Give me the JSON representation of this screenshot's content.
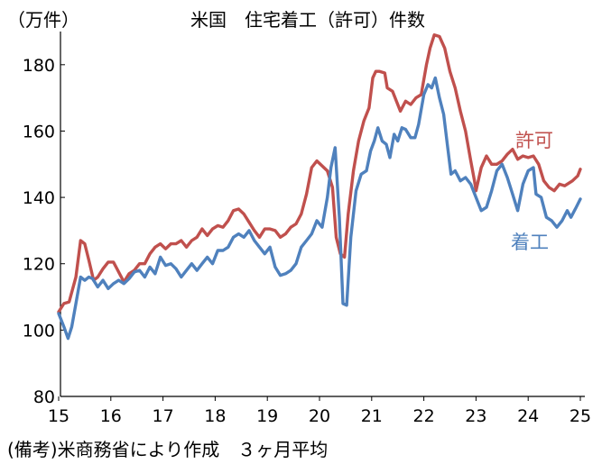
{
  "chart_data": {
    "type": "line",
    "title": "米国　住宅着工（許可）件数",
    "ylabel": "（万件）",
    "source": "(備考)米商務省により作成　３ヶ月平均",
    "ylim": [
      80,
      190
    ],
    "xlim": [
      15,
      25.1
    ],
    "yticks": [
      80,
      100,
      120,
      140,
      160,
      180
    ],
    "xticks": [
      15,
      16,
      17,
      18,
      19,
      20,
      21,
      22,
      23,
      24,
      25
    ],
    "xtick_labels": [
      "15",
      "16",
      "17",
      "18",
      "19",
      "20",
      "21",
      "22",
      "23",
      "24",
      "25"
    ],
    "ytick_labels": [
      "80",
      "100",
      "120",
      "140",
      "160",
      "180"
    ],
    "grid": false,
    "series": [
      {
        "name": "許可",
        "color": "#c0504d",
        "points": [
          [
            15.0,
            105.5
          ],
          [
            15.1,
            108
          ],
          [
            15.2,
            108.5
          ],
          [
            15.33,
            116
          ],
          [
            15.42,
            127
          ],
          [
            15.5,
            126
          ],
          [
            15.58,
            121
          ],
          [
            15.67,
            115
          ],
          [
            15.75,
            116
          ],
          [
            15.85,
            118.5
          ],
          [
            15.95,
            120.5
          ],
          [
            16.05,
            120.5
          ],
          [
            16.15,
            117.5
          ],
          [
            16.25,
            114.5
          ],
          [
            16.35,
            117
          ],
          [
            16.45,
            118
          ],
          [
            16.55,
            120
          ],
          [
            16.65,
            120
          ],
          [
            16.75,
            123
          ],
          [
            16.85,
            125
          ],
          [
            16.95,
            126
          ],
          [
            17.05,
            124.5
          ],
          [
            17.15,
            126
          ],
          [
            17.25,
            126
          ],
          [
            17.35,
            127
          ],
          [
            17.45,
            125
          ],
          [
            17.55,
            127
          ],
          [
            17.65,
            128
          ],
          [
            17.75,
            130.5
          ],
          [
            17.85,
            128.5
          ],
          [
            17.95,
            130.5
          ],
          [
            18.05,
            131.5
          ],
          [
            18.15,
            131
          ],
          [
            18.25,
            133
          ],
          [
            18.35,
            136
          ],
          [
            18.45,
            136.5
          ],
          [
            18.55,
            135
          ],
          [
            18.65,
            132.5
          ],
          [
            18.75,
            130
          ],
          [
            18.85,
            128
          ],
          [
            18.95,
            130.5
          ],
          [
            19.05,
            130.5
          ],
          [
            19.15,
            130
          ],
          [
            19.25,
            128
          ],
          [
            19.35,
            129
          ],
          [
            19.45,
            131
          ],
          [
            19.55,
            132
          ],
          [
            19.65,
            135
          ],
          [
            19.75,
            141
          ],
          [
            19.85,
            149
          ],
          [
            19.95,
            151
          ],
          [
            20.05,
            149.5
          ],
          [
            20.15,
            148
          ],
          [
            20.25,
            143
          ],
          [
            20.32,
            128
          ],
          [
            20.4,
            123
          ],
          [
            20.48,
            122
          ],
          [
            20.55,
            135
          ],
          [
            20.65,
            148
          ],
          [
            20.75,
            157
          ],
          [
            20.85,
            163
          ],
          [
            20.95,
            167
          ],
          [
            21.02,
            176
          ],
          [
            21.08,
            178
          ],
          [
            21.15,
            178
          ],
          [
            21.25,
            177.5
          ],
          [
            21.3,
            173
          ],
          [
            21.4,
            172
          ],
          [
            21.5,
            168
          ],
          [
            21.55,
            166
          ],
          [
            21.65,
            169
          ],
          [
            21.75,
            168
          ],
          [
            21.85,
            170
          ],
          [
            21.95,
            171
          ],
          [
            22.05,
            180
          ],
          [
            22.12,
            185
          ],
          [
            22.2,
            189
          ],
          [
            22.3,
            188.5
          ],
          [
            22.4,
            185
          ],
          [
            22.5,
            178
          ],
          [
            22.6,
            173
          ],
          [
            22.7,
            166
          ],
          [
            22.8,
            160
          ],
          [
            22.9,
            151
          ],
          [
            22.97,
            145
          ],
          [
            23.0,
            142
          ],
          [
            23.1,
            149
          ],
          [
            23.2,
            152.5
          ],
          [
            23.3,
            150
          ],
          [
            23.4,
            150
          ],
          [
            23.5,
            151
          ],
          [
            23.6,
            153
          ],
          [
            23.7,
            154.5
          ],
          [
            23.75,
            153
          ],
          [
            23.8,
            151.5
          ],
          [
            23.9,
            152.5
          ],
          [
            24.0,
            152
          ],
          [
            24.1,
            152.5
          ],
          [
            24.2,
            150
          ],
          [
            24.3,
            145
          ],
          [
            24.4,
            143
          ],
          [
            24.5,
            142
          ],
          [
            24.6,
            144
          ],
          [
            24.7,
            143.5
          ],
          [
            24.85,
            145
          ],
          [
            24.95,
            146.5
          ],
          [
            25.0,
            148.5
          ]
        ]
      },
      {
        "name": "着工",
        "color": "#4f81bd",
        "points": [
          [
            15.0,
            105
          ],
          [
            15.1,
            101
          ],
          [
            15.18,
            97.5
          ],
          [
            15.25,
            101
          ],
          [
            15.33,
            108
          ],
          [
            15.42,
            116
          ],
          [
            15.5,
            115
          ],
          [
            15.58,
            116
          ],
          [
            15.65,
            115.5
          ],
          [
            15.75,
            113
          ],
          [
            15.85,
            115
          ],
          [
            15.95,
            112.5
          ],
          [
            16.05,
            114
          ],
          [
            16.15,
            115
          ],
          [
            16.25,
            114
          ],
          [
            16.35,
            115.5
          ],
          [
            16.45,
            117.5
          ],
          [
            16.55,
            118
          ],
          [
            16.65,
            116
          ],
          [
            16.75,
            119
          ],
          [
            16.85,
            117
          ],
          [
            16.95,
            122
          ],
          [
            17.05,
            119.5
          ],
          [
            17.15,
            120
          ],
          [
            17.25,
            118.5
          ],
          [
            17.35,
            116
          ],
          [
            17.45,
            118
          ],
          [
            17.55,
            120
          ],
          [
            17.65,
            118
          ],
          [
            17.75,
            120
          ],
          [
            17.85,
            122
          ],
          [
            17.95,
            120
          ],
          [
            18.05,
            124
          ],
          [
            18.15,
            124
          ],
          [
            18.25,
            125
          ],
          [
            18.35,
            128
          ],
          [
            18.45,
            129
          ],
          [
            18.55,
            128
          ],
          [
            18.65,
            130
          ],
          [
            18.75,
            127
          ],
          [
            18.85,
            125
          ],
          [
            18.95,
            123
          ],
          [
            19.05,
            125
          ],
          [
            19.15,
            119
          ],
          [
            19.25,
            116.5
          ],
          [
            19.35,
            117
          ],
          [
            19.45,
            118
          ],
          [
            19.55,
            120
          ],
          [
            19.65,
            125
          ],
          [
            19.75,
            127
          ],
          [
            19.85,
            129
          ],
          [
            19.95,
            133
          ],
          [
            20.05,
            131
          ],
          [
            20.15,
            140
          ],
          [
            20.22,
            149
          ],
          [
            20.3,
            155
          ],
          [
            20.38,
            134
          ],
          [
            20.45,
            108
          ],
          [
            20.52,
            107.5
          ],
          [
            20.6,
            128
          ],
          [
            20.7,
            142
          ],
          [
            20.8,
            147
          ],
          [
            20.9,
            148
          ],
          [
            20.98,
            154
          ],
          [
            21.05,
            157
          ],
          [
            21.12,
            161
          ],
          [
            21.2,
            157
          ],
          [
            21.28,
            156
          ],
          [
            21.35,
            152
          ],
          [
            21.43,
            159
          ],
          [
            21.5,
            157
          ],
          [
            21.58,
            161
          ],
          [
            21.65,
            160.5
          ],
          [
            21.75,
            158
          ],
          [
            21.83,
            158
          ],
          [
            21.9,
            162
          ],
          [
            22.0,
            171
          ],
          [
            22.08,
            174
          ],
          [
            22.15,
            173
          ],
          [
            22.22,
            176
          ],
          [
            22.3,
            170
          ],
          [
            22.38,
            165
          ],
          [
            22.45,
            156
          ],
          [
            22.52,
            147
          ],
          [
            22.6,
            148
          ],
          [
            22.7,
            145
          ],
          [
            22.8,
            146
          ],
          [
            22.9,
            144
          ],
          [
            23.0,
            140
          ],
          [
            23.1,
            136
          ],
          [
            23.2,
            137
          ],
          [
            23.3,
            142
          ],
          [
            23.4,
            148
          ],
          [
            23.5,
            150
          ],
          [
            23.6,
            146
          ],
          [
            23.7,
            141
          ],
          [
            23.8,
            136
          ],
          [
            23.9,
            144
          ],
          [
            24.0,
            148
          ],
          [
            24.1,
            149
          ],
          [
            24.15,
            141
          ],
          [
            24.25,
            140
          ],
          [
            24.35,
            134
          ],
          [
            24.45,
            133
          ],
          [
            24.55,
            131
          ],
          [
            24.65,
            133
          ],
          [
            24.75,
            136
          ],
          [
            24.82,
            134
          ],
          [
            24.92,
            137
          ],
          [
            25.0,
            139.5
          ]
        ]
      }
    ]
  }
}
